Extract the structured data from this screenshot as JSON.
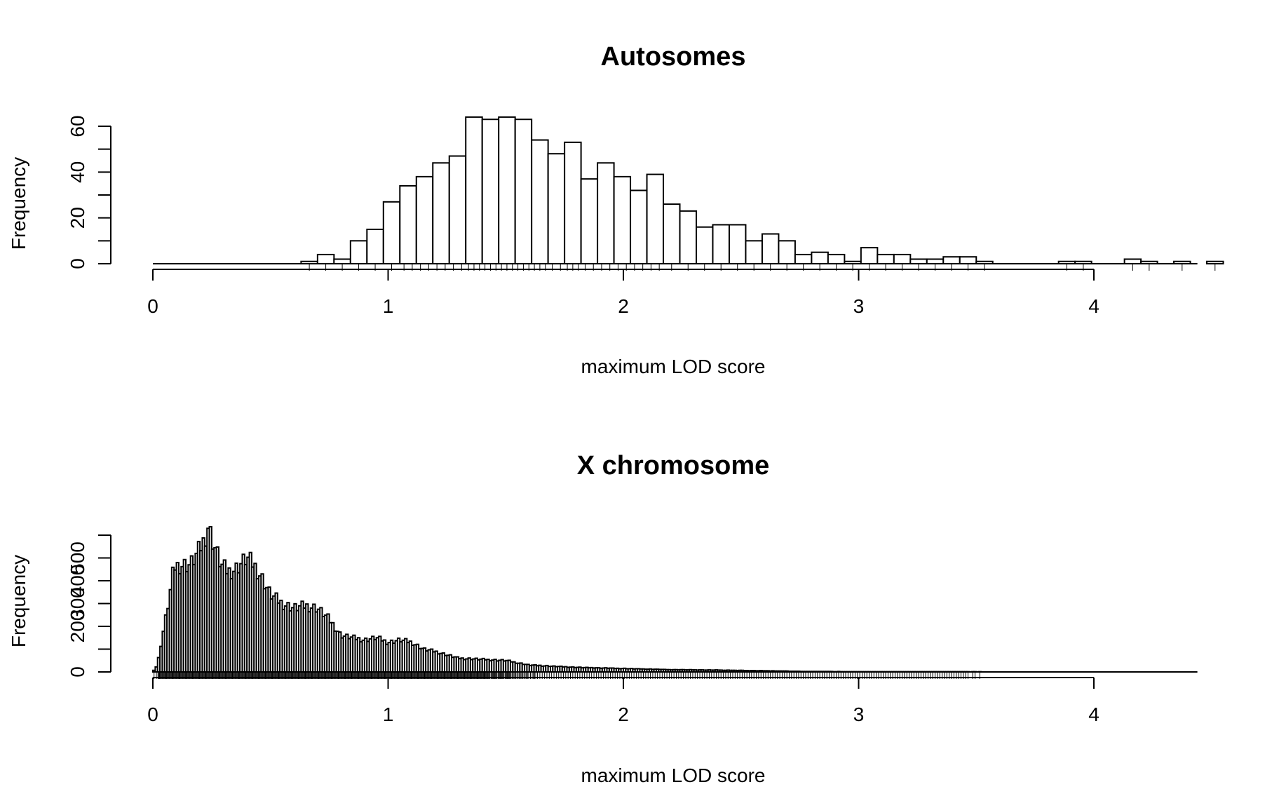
{
  "chart_data": [
    {
      "type": "bar",
      "title": "Autosomes",
      "xlabel": "maximum LOD score",
      "ylabel": "Frequency",
      "bin_width": 0.07,
      "bin_start": 0.63,
      "values": [
        1,
        4,
        2,
        10,
        15,
        27,
        34,
        38,
        44,
        47,
        64,
        63,
        64,
        63,
        54,
        48,
        53,
        37,
        44,
        38,
        32,
        39,
        26,
        23,
        16,
        17,
        17,
        10,
        13,
        10,
        4,
        5,
        4,
        1,
        7,
        4,
        4,
        2,
        2,
        3,
        3,
        1,
        0,
        0,
        0,
        0,
        1,
        1,
        0,
        0,
        2,
        1,
        0,
        1,
        0,
        1
      ],
      "xlim": [
        0,
        4.44
      ],
      "ylim": [
        0,
        64
      ],
      "xticks": [
        "0",
        "1",
        "2",
        "3",
        "4"
      ],
      "yticks": [
        "0",
        "20",
        "40",
        "60"
      ]
    },
    {
      "type": "bar",
      "title": "X chromosome",
      "xlabel": "maximum LOD score",
      "ylabel": "Frequency",
      "bin_width": 0.01,
      "bin_start": 0.0,
      "anchors": [
        [
          0.0,
          0
        ],
        [
          0.02,
          30
        ],
        [
          0.04,
          150
        ],
        [
          0.07,
          320
        ],
        [
          0.09,
          460
        ],
        [
          0.12,
          470
        ],
        [
          0.16,
          470
        ],
        [
          0.19,
          520
        ],
        [
          0.22,
          580
        ],
        [
          0.235,
          640
        ],
        [
          0.26,
          560
        ],
        [
          0.29,
          470
        ],
        [
          0.32,
          440
        ],
        [
          0.35,
          450
        ],
        [
          0.38,
          480
        ],
        [
          0.4,
          500
        ],
        [
          0.43,
          470
        ],
        [
          0.46,
          420
        ],
        [
          0.5,
          340
        ],
        [
          0.55,
          300
        ],
        [
          0.6,
          280
        ],
        [
          0.65,
          290
        ],
        [
          0.7,
          280
        ],
        [
          0.75,
          230
        ],
        [
          0.8,
          160
        ],
        [
          0.85,
          150
        ],
        [
          0.9,
          140
        ],
        [
          0.95,
          150
        ],
        [
          1.0,
          130
        ],
        [
          1.05,
          140
        ],
        [
          1.1,
          130
        ],
        [
          1.15,
          100
        ],
        [
          1.2,
          90
        ],
        [
          1.3,
          60
        ],
        [
          1.4,
          55
        ],
        [
          1.5,
          50
        ],
        [
          1.6,
          30
        ],
        [
          1.8,
          20
        ],
        [
          2.0,
          15
        ],
        [
          2.2,
          10
        ],
        [
          2.4,
          8
        ],
        [
          2.6,
          5
        ],
        [
          2.8,
          2
        ],
        [
          3.0,
          1
        ],
        [
          4.0,
          0
        ]
      ],
      "xlim": [
        0,
        4.44
      ],
      "ylim": [
        0,
        600
      ],
      "xticks": [
        "0",
        "1",
        "2",
        "3",
        "4"
      ],
      "yticks": [
        "0",
        "200",
        "300",
        "400",
        "500"
      ]
    }
  ]
}
